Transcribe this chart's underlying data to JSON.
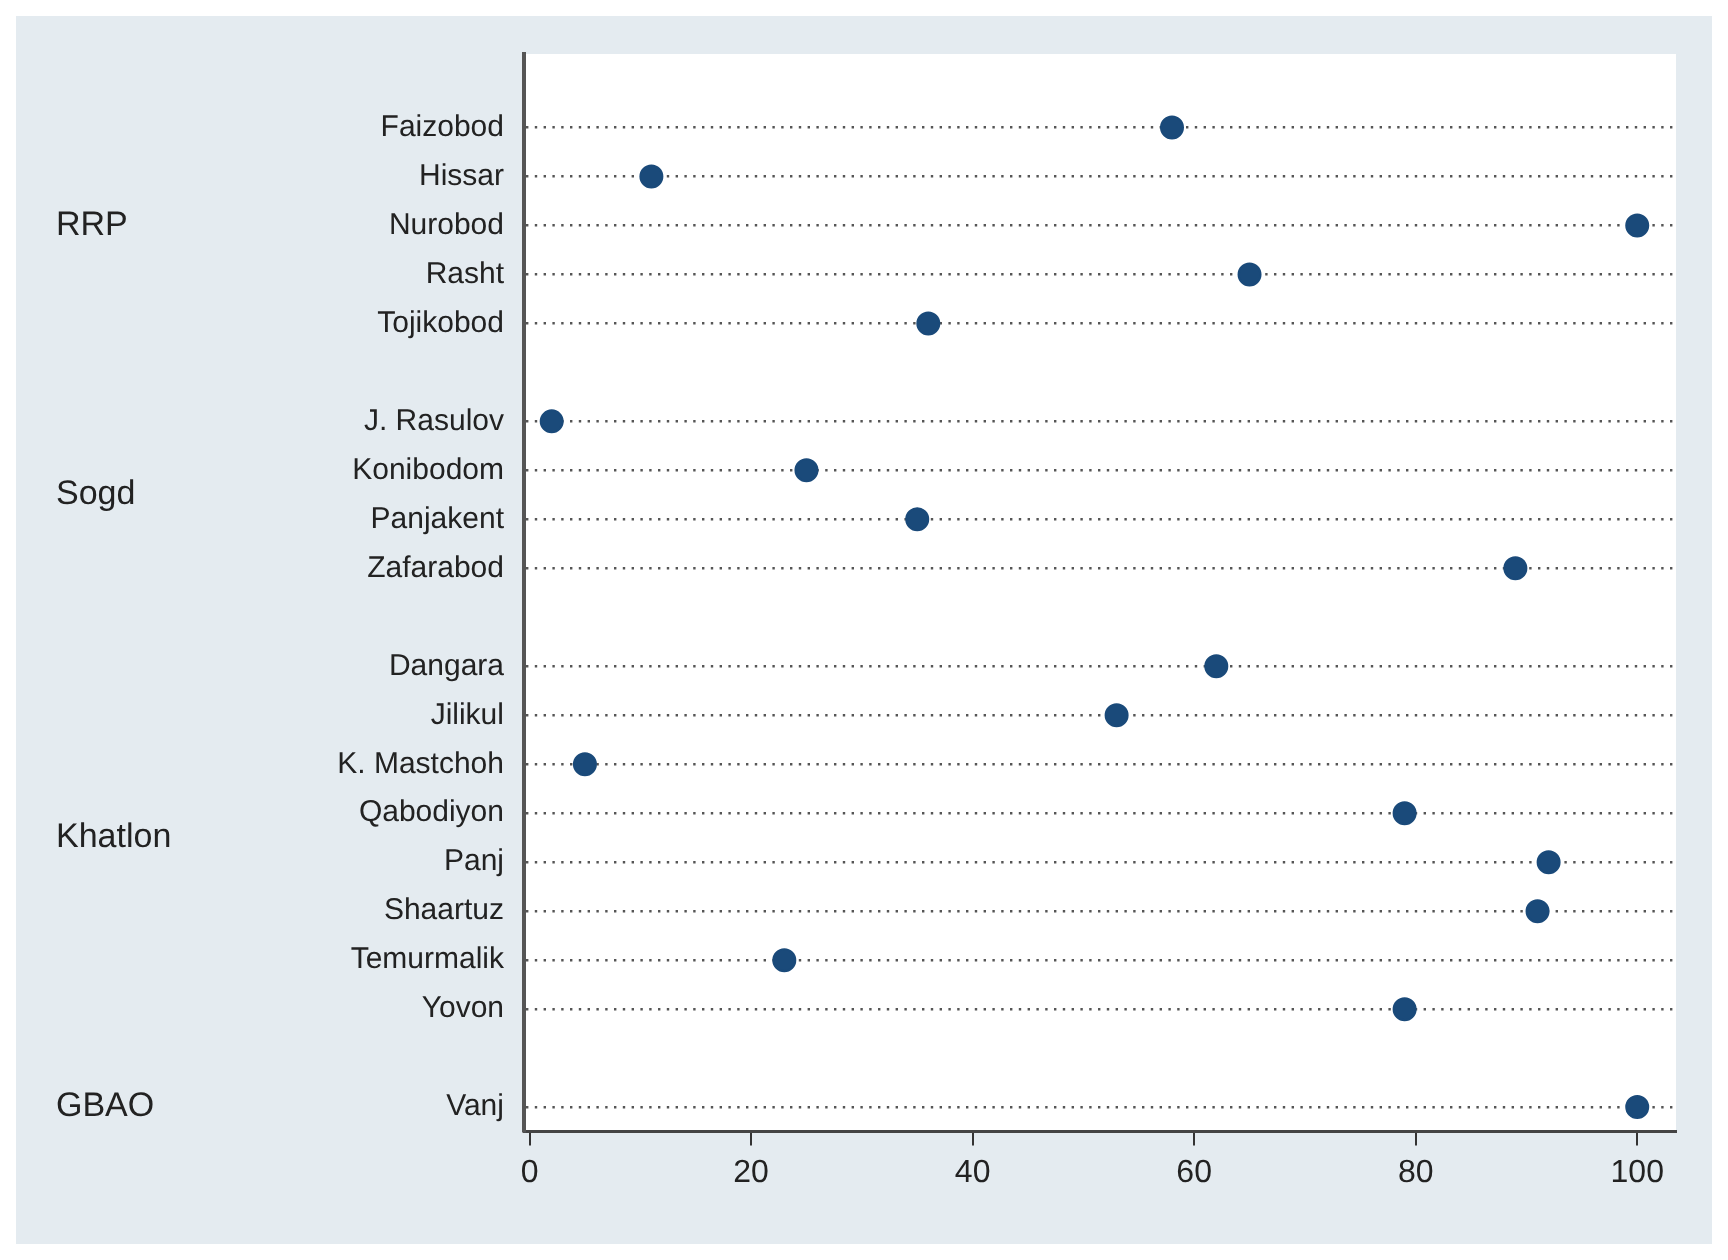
{
  "chart_data": {
    "type": "scatter",
    "orientation": "horizontal",
    "categories": [
      "Faizobod",
      "Hissar",
      "Nurobod",
      "Rasht",
      "Tojikobod",
      null,
      "J. Rasulov",
      "Konibodom",
      "Panjakent",
      "Zafarabod",
      null,
      "Dangara",
      "Jilikul",
      "K. Mastchoh",
      "Qabodiyon",
      "Panj",
      "Shaartuz",
      "Temurmalik",
      "Yovon",
      null,
      "Vanj"
    ],
    "series": [
      {
        "color": "#1a4a7a",
        "values": [
          58,
          11,
          100,
          65,
          36,
          null,
          2,
          25,
          35,
          89,
          null,
          62,
          53,
          5,
          79,
          92,
          91,
          23,
          79,
          null,
          100
        ]
      }
    ],
    "annotations": [
      "RRP",
      "Sogd",
      "Khatlon",
      "GBAO"
    ],
    "xlim": [
      -0.5,
      103.5
    ],
    "xticks": [
      0,
      20,
      40,
      60,
      80,
      100
    ],
    "grid": "y",
    "marker": "circle"
  }
}
